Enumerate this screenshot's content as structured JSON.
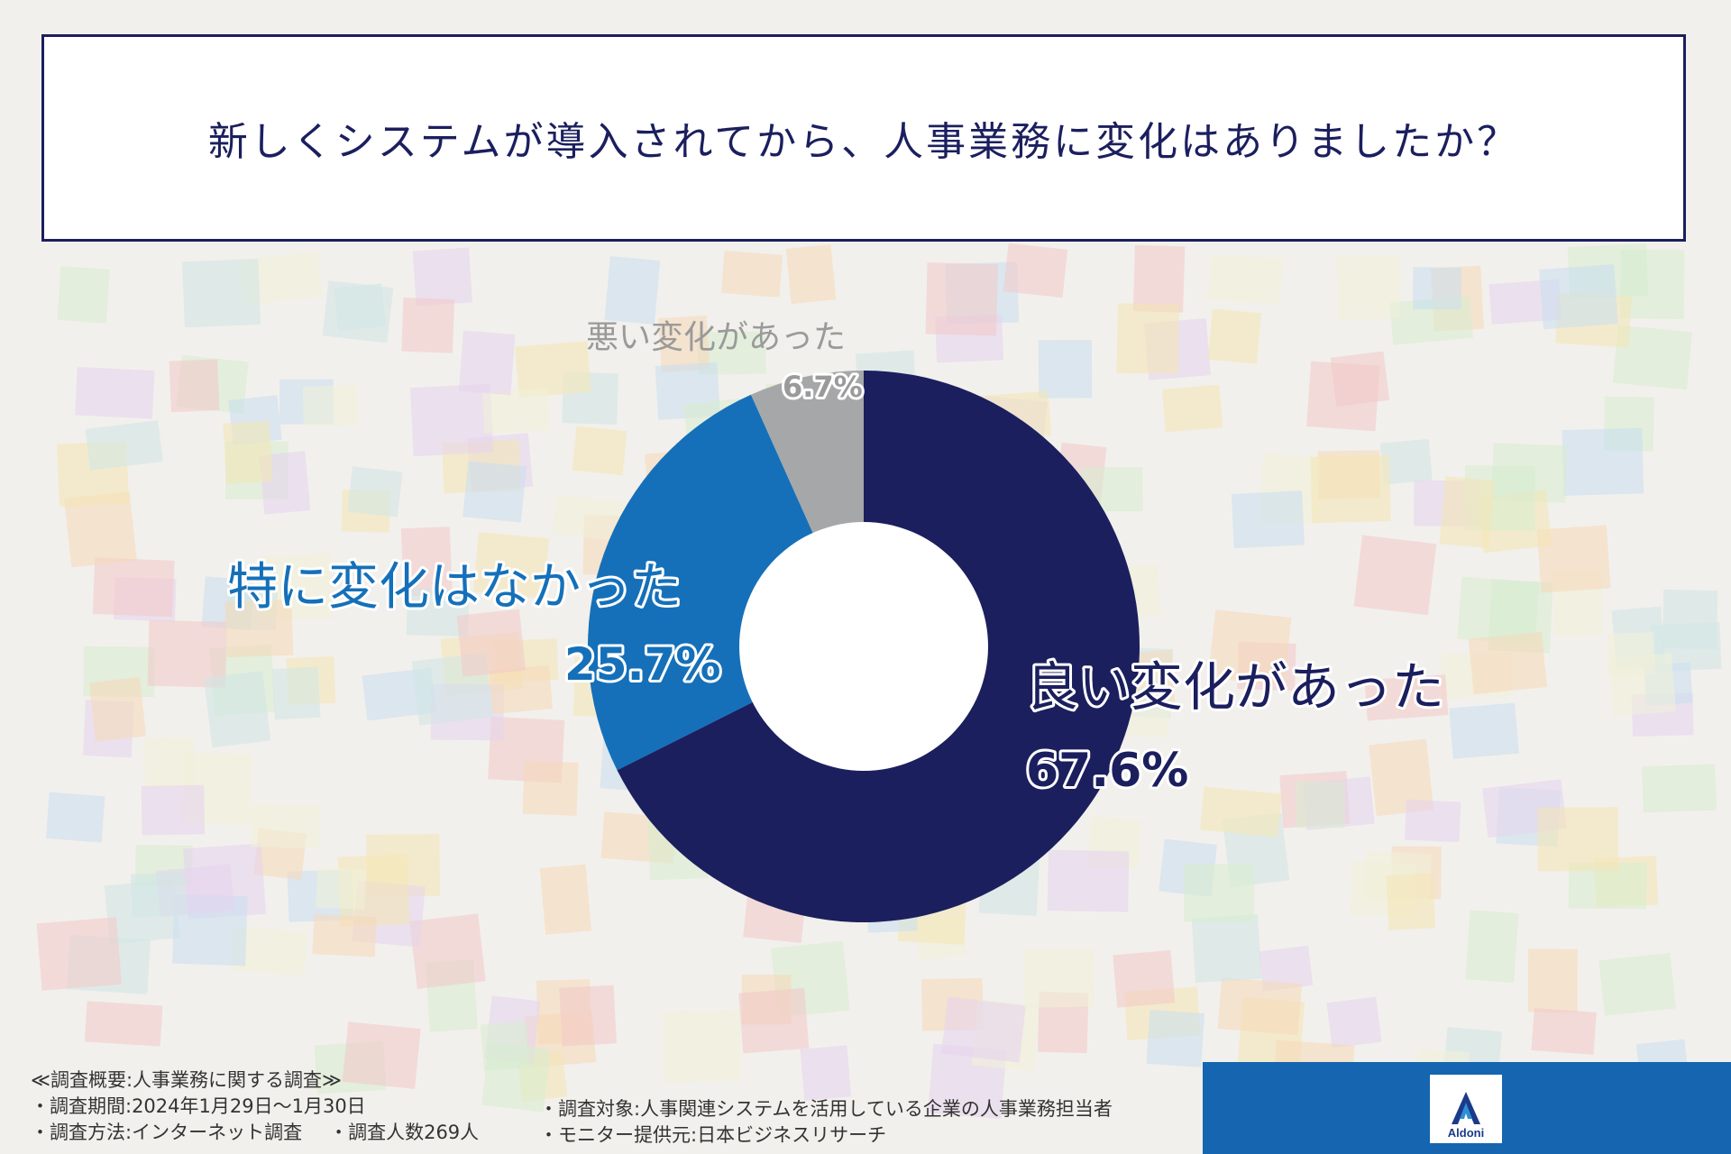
{
  "title": "新しくシステムが導入されてから、人事業務に変化はありましたか？",
  "colors": {
    "navy": "#1b1f5e",
    "blue": "#1570b9",
    "gray": "#a6a7a9"
  },
  "chart_data": {
    "type": "pie",
    "title": "新しくシステムが導入されてから、人事業務に変化はありましたか？",
    "slices": [
      {
        "label": "良い変化があった",
        "value": 67.6,
        "value_label": "67.6%",
        "color": "#1b1f5e"
      },
      {
        "label": "特に変化はなかった",
        "value": 25.7,
        "value_label": "25.7%",
        "color": "#1570b9"
      },
      {
        "label": "悪い変化があった",
        "value": 6.7,
        "value_label": "6.7%",
        "color": "#a6a7a9"
      }
    ]
  },
  "footer": {
    "heading": "≪調査概要:人事業務に関する調査≫",
    "period": "・調査期間:2024年1月29日～1月30日",
    "method": "・調査方法:インターネット調査",
    "count": "・調査人数269人",
    "target": "・調査対象:人事関連システムを活用している企業の人事業務担当者",
    "monitor": "・モニター提供元:日本ビジネスリサーチ"
  },
  "logo": {
    "text": "Aldoni",
    "icon": "aldoni-logo-icon"
  }
}
